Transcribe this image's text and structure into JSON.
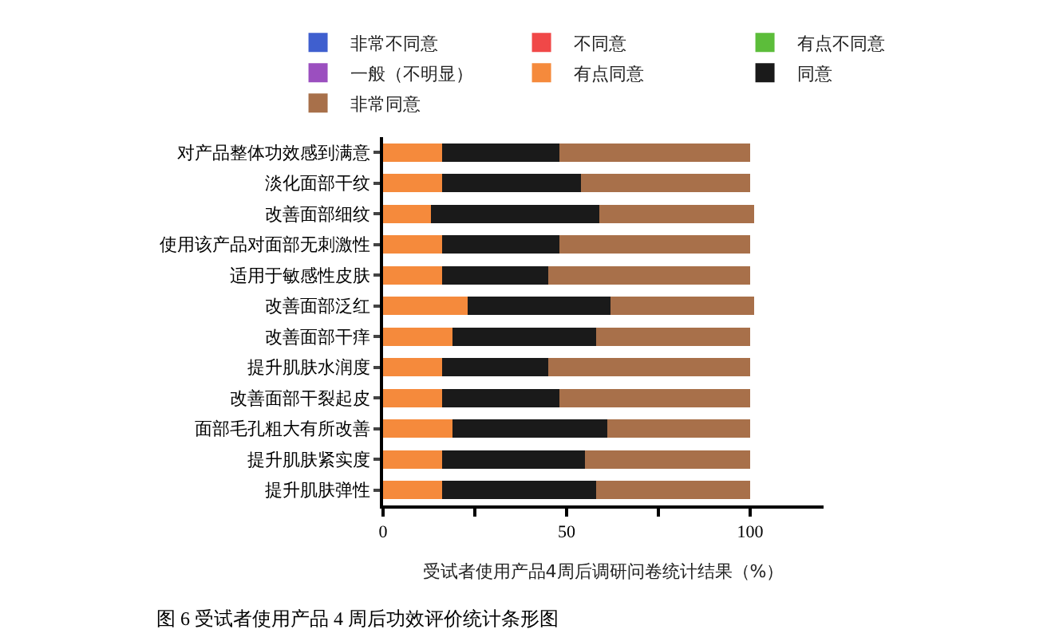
{
  "chart_data": {
    "type": "bar",
    "orientation": "horizontal",
    "stacked": true,
    "xlabel": "受试者使用产品4周后调研问卷统计结果（%）",
    "categories": [
      "对产品整体功效感到满意",
      "淡化面部干纹",
      "改善面部细纹",
      "使用该产品对面部无刺激性",
      "适用于敏感性皮肤",
      "改善面部泛红",
      "改善面部干痒",
      "提升肌肤水润度",
      "改善面部干裂起皮",
      "面部毛孔粗大有所改善",
      "提升肌肤紧实度",
      "提升肌肤弹性"
    ],
    "series": [
      {
        "name": "非常不同意",
        "color": "#3f5fcf",
        "values": [
          0,
          0,
          0,
          0,
          0,
          0,
          0,
          0,
          0,
          0,
          0,
          0
        ]
      },
      {
        "name": "不同意",
        "color": "#f04848",
        "values": [
          0,
          0,
          0,
          0,
          0,
          0,
          0,
          0,
          0,
          0,
          0,
          0
        ]
      },
      {
        "name": "有点不同意",
        "color": "#5cbd3a",
        "values": [
          0,
          0,
          0,
          0,
          0,
          0,
          0,
          0,
          0,
          0,
          0,
          0
        ]
      },
      {
        "name": "一般（不明显）",
        "color": "#9b4fbf",
        "values": [
          0,
          0,
          0,
          0,
          0,
          0,
          0,
          0,
          0,
          0,
          0,
          0
        ]
      },
      {
        "name": "有点同意",
        "color": "#f58a3c",
        "values": [
          16,
          16,
          13,
          16,
          16,
          23,
          19,
          16,
          16,
          19,
          16,
          16
        ]
      },
      {
        "name": "同意",
        "color": "#1a1a1a",
        "values": [
          32,
          38,
          46,
          32,
          29,
          39,
          39,
          29,
          32,
          42,
          39,
          42
        ]
      },
      {
        "name": "非常同意",
        "color": "#a8704a",
        "values": [
          52,
          46,
          42,
          52,
          55,
          39,
          42,
          55,
          52,
          39,
          45,
          42
        ]
      }
    ],
    "xlim": [
      0,
      120
    ],
    "xticks": [
      0,
      {
        "value": 25,
        "label": null
      },
      50,
      {
        "value": 75,
        "label": null
      },
      100
    ],
    "legend": "top",
    "annotations": [
      "图 6 受试者使用产品 4 周后功效评价统计条形图"
    ]
  }
}
